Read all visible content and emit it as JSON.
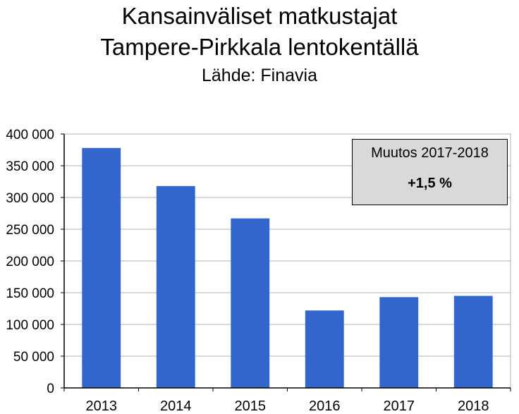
{
  "chart_data": {
    "type": "bar",
    "title": "Kansainväliset matkustajat",
    "title_line2": "Tampere-Pirkkala lentokentällä",
    "subtitle": "Lähde: Finavia",
    "categories": [
      "2013",
      "2014",
      "2015",
      "2016",
      "2017",
      "2018"
    ],
    "values": [
      378000,
      318000,
      267000,
      122000,
      143000,
      145000
    ],
    "ylim": [
      0,
      400000
    ],
    "yticks": [
      0,
      50000,
      100000,
      150000,
      200000,
      250000,
      300000,
      350000,
      400000
    ],
    "ytick_labels": [
      "0",
      "50 000",
      "100 000",
      "150 000",
      "200 000",
      "250 000",
      "300 000",
      "350 000",
      "400 000"
    ],
    "grid": true,
    "bar_color": "#3366cc",
    "annotation": {
      "line1": "Muutos 2017-2018",
      "line2": "+1,5 %"
    }
  }
}
